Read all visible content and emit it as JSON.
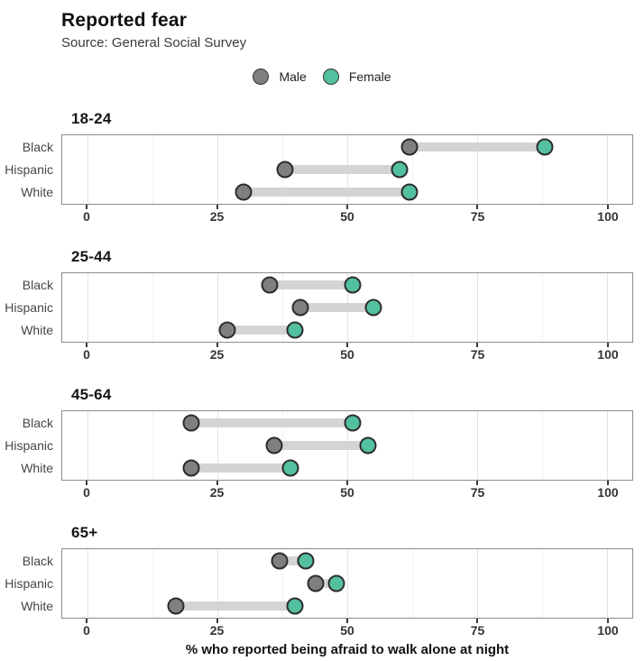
{
  "header": {
    "title": "Reported fear",
    "subtitle": "Source: General Social Survey"
  },
  "legend": [
    {
      "label": "Male",
      "series": "male"
    },
    {
      "label": "Female",
      "series": "female"
    }
  ],
  "colors": {
    "male": "#7F7F7F",
    "female": "#53C0A0",
    "bar": "#D4D4D4",
    "dot_border": "#2D2D2D",
    "panel_border": "#8C8C8C",
    "grid_major": "#E3E3E3",
    "grid_minor": "#F1F1F1"
  },
  "chart_data": {
    "type": "scatter",
    "variant": "dumbbell",
    "title": "Reported fear",
    "subtitle": "Source: General Social Survey",
    "xlabel": "% who reported being afraid to walk alone at night",
    "xlim": [
      0,
      100
    ],
    "xticks": [
      0,
      25,
      50,
      75,
      100
    ],
    "minor_ticks": [
      12.5,
      37.5,
      62.5,
      87.5
    ],
    "grid": "vertical-only",
    "legend_entries": [
      "Male",
      "Female"
    ],
    "legend_position": "top-center",
    "facets": [
      {
        "title": "18-24",
        "categories": [
          "Black",
          "Hispanic",
          "White"
        ],
        "series": [
          {
            "name": "Male",
            "values": [
              62,
              38,
              30
            ]
          },
          {
            "name": "Female",
            "values": [
              88,
              60,
              62
            ]
          }
        ]
      },
      {
        "title": "25-44",
        "categories": [
          "Black",
          "Hispanic",
          "White"
        ],
        "series": [
          {
            "name": "Male",
            "values": [
              35,
              41,
              27
            ]
          },
          {
            "name": "Female",
            "values": [
              51,
              55,
              40
            ]
          }
        ]
      },
      {
        "title": "45-64",
        "categories": [
          "Black",
          "Hispanic",
          "White"
        ],
        "series": [
          {
            "name": "Male",
            "values": [
              20,
              36,
              20
            ]
          },
          {
            "name": "Female",
            "values": [
              51,
              54,
              39
            ]
          }
        ]
      },
      {
        "title": "65+",
        "categories": [
          "Black",
          "Hispanic",
          "White"
        ],
        "series": [
          {
            "name": "Male",
            "values": [
              37,
              44,
              17
            ]
          },
          {
            "name": "Female",
            "values": [
              42,
              48,
              40
            ]
          }
        ]
      }
    ]
  }
}
